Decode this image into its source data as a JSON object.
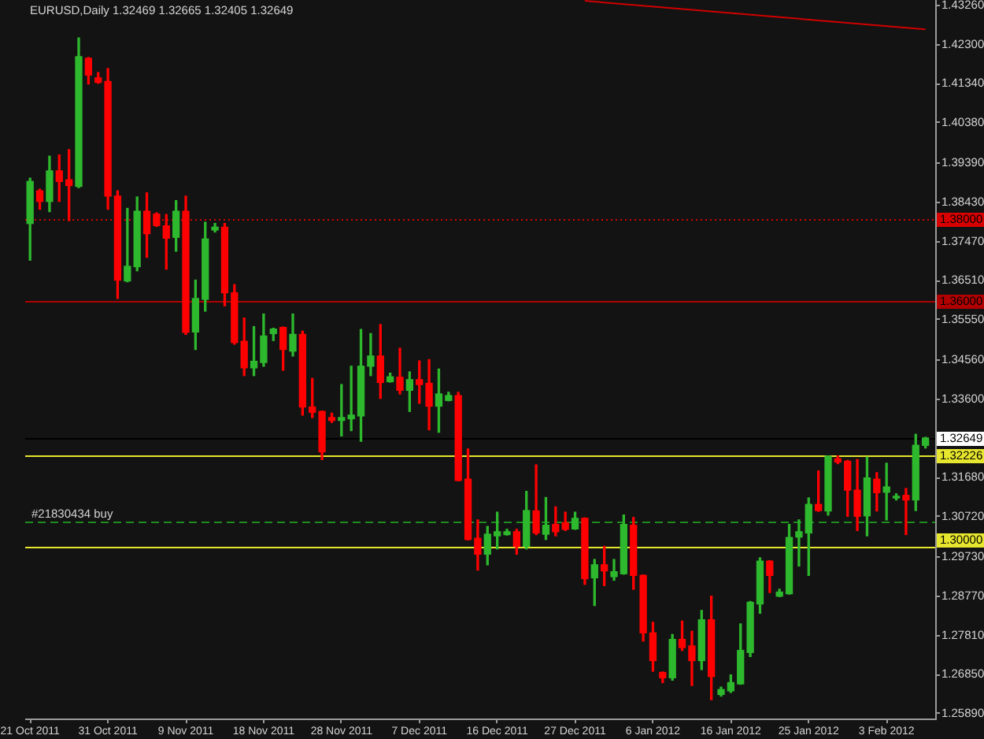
{
  "chart_data": {
    "type": "candlestick",
    "title": "EURUSD,Daily 1.32469 1.32665 1.32405 1.32649",
    "categories": [
      "21 Oct 2011",
      null,
      null,
      null,
      null,
      null,
      null,
      null,
      "31 Oct 2011",
      null,
      null,
      null,
      null,
      null,
      null,
      null,
      "9 Nov 2011",
      null,
      null,
      null,
      null,
      null,
      null,
      null,
      "18 Nov 2011",
      null,
      null,
      null,
      null,
      null,
      null,
      null,
      "28 Nov 2011",
      null,
      null,
      null,
      null,
      null,
      null,
      null,
      "7 Dec 2011",
      null,
      null,
      null,
      null,
      null,
      null,
      null,
      "16 Dec 2011",
      null,
      null,
      null,
      null,
      null,
      null,
      null,
      "27 Dec 2011",
      null,
      null,
      null,
      null,
      null,
      null,
      null,
      "6 Jan 2012",
      null,
      null,
      null,
      null,
      null,
      null,
      null,
      "16 Jan 2012",
      null,
      null,
      null,
      null,
      null,
      null,
      null,
      "25 Jan 2012",
      null,
      null,
      null,
      null,
      null,
      null,
      null,
      "3 Feb 2012",
      null,
      null,
      null,
      null
    ],
    "ohlc": [
      [
        1.3791,
        1.3902,
        1.3701,
        1.3894
      ],
      [
        1.3871,
        1.3875,
        1.3826,
        1.3845
      ],
      [
        1.3845,
        1.3956,
        1.382,
        1.392
      ],
      [
        1.392,
        1.3959,
        1.3845,
        1.3894
      ],
      [
        1.3898,
        1.3972,
        1.3798,
        1.3884
      ],
      [
        1.3882,
        1.4246,
        1.3879,
        1.42
      ],
      [
        1.4196,
        1.4198,
        1.4133,
        1.4155
      ],
      [
        1.4148,
        1.4161,
        1.4135,
        1.4137
      ],
      [
        1.4139,
        1.4171,
        1.3826,
        1.3858
      ],
      [
        1.3858,
        1.3871,
        1.3607,
        1.3652
      ],
      [
        1.365,
        1.3828,
        1.3648,
        1.3686
      ],
      [
        1.3685,
        1.3856,
        1.3675,
        1.3821
      ],
      [
        1.3821,
        1.3866,
        1.3708,
        1.3766
      ],
      [
        1.3814,
        1.3817,
        1.3784,
        1.3786
      ],
      [
        1.3785,
        1.3813,
        1.3679,
        1.3755
      ],
      [
        1.3757,
        1.3847,
        1.3723,
        1.3821
      ],
      [
        1.3821,
        1.3858,
        1.3519,
        1.3524
      ],
      [
        1.3525,
        1.3652,
        1.3482,
        1.3607
      ],
      [
        1.3605,
        1.3794,
        1.3576,
        1.3753
      ],
      [
        1.3775,
        1.3791,
        1.377,
        1.3782
      ],
      [
        1.3782,
        1.3791,
        1.3589,
        1.3621
      ],
      [
        1.3621,
        1.3641,
        1.3495,
        1.3499
      ],
      [
        1.3502,
        1.3559,
        1.3418,
        1.3437
      ],
      [
        1.3437,
        1.3538,
        1.3418,
        1.3453
      ],
      [
        1.345,
        1.3569,
        1.3441,
        1.3515
      ],
      [
        1.3521,
        1.3534,
        1.3504,
        1.3532
      ],
      [
        1.3536,
        1.3537,
        1.3431,
        1.3482
      ],
      [
        1.3478,
        1.3569,
        1.3466,
        1.3519
      ],
      [
        1.3519,
        1.3527,
        1.3321,
        1.3341
      ],
      [
        1.3341,
        1.3411,
        1.3315,
        1.3328
      ],
      [
        1.333,
        1.3331,
        1.3212,
        1.3231
      ],
      [
        1.3315,
        1.3326,
        1.3303,
        1.3308
      ],
      [
        1.3308,
        1.3396,
        1.327,
        1.3315
      ],
      [
        1.3312,
        1.3441,
        1.3283,
        1.3321
      ],
      [
        1.3319,
        1.3531,
        1.3257,
        1.3441
      ],
      [
        1.3441,
        1.3521,
        1.3418,
        1.3466
      ],
      [
        1.3466,
        1.3543,
        1.3362,
        1.3401
      ],
      [
        1.3403,
        1.3424,
        1.3402,
        1.3415
      ],
      [
        1.3414,
        1.3485,
        1.3373,
        1.3382
      ],
      [
        1.3382,
        1.3427,
        1.333,
        1.3408
      ],
      [
        1.3408,
        1.3454,
        1.335,
        1.3396
      ],
      [
        1.3399,
        1.3457,
        1.3285,
        1.3343
      ],
      [
        1.3343,
        1.3434,
        1.3279,
        1.3373
      ],
      [
        1.3357,
        1.3377,
        1.3356,
        1.3369
      ],
      [
        1.3369,
        1.3377,
        1.316,
        1.3161
      ],
      [
        1.3164,
        1.3238,
        1.3015,
        1.3016
      ],
      [
        1.3019,
        1.3064,
        1.2941,
        1.298
      ],
      [
        1.298,
        1.3048,
        1.2954,
        1.3029
      ],
      [
        1.3025,
        1.3083,
        1.2993,
        1.3035
      ],
      [
        1.3028,
        1.3041,
        1.3027,
        1.3035
      ],
      [
        1.3035,
        1.3041,
        1.298,
        1.2999
      ],
      [
        1.2999,
        1.3134,
        1.2993,
        1.3087
      ],
      [
        1.3086,
        1.3199,
        1.3028,
        1.3032
      ],
      [
        1.3029,
        1.3119,
        1.3016,
        1.3051
      ],
      [
        1.3053,
        1.3096,
        1.3025,
        1.3035
      ],
      [
        1.3057,
        1.3083,
        1.3038,
        1.3041
      ],
      [
        1.3042,
        1.3083,
        1.3041,
        1.3068
      ],
      [
        1.3068,
        1.3069,
        1.2906,
        1.292
      ],
      [
        1.2922,
        1.2967,
        1.2854,
        1.2954
      ],
      [
        1.2954,
        1.2999,
        1.2903,
        1.2939
      ],
      [
        1.2925,
        1.2967,
        1.2916,
        1.2937
      ],
      [
        1.2932,
        1.3076,
        1.2931,
        1.3053
      ],
      [
        1.3051,
        1.307,
        1.2894,
        1.2928
      ],
      [
        1.2928,
        1.2929,
        1.2767,
        1.2787
      ],
      [
        1.2787,
        1.2813,
        1.2693,
        1.2719
      ],
      [
        1.269,
        1.2691,
        1.2665,
        1.2677
      ],
      [
        1.2677,
        1.2783,
        1.2671,
        1.2771
      ],
      [
        1.2771,
        1.2816,
        1.2744,
        1.2751
      ],
      [
        1.2755,
        1.2791,
        1.2658,
        1.2719
      ],
      [
        1.2719,
        1.2842,
        1.2697,
        1.2819
      ],
      [
        1.2819,
        1.2877,
        1.2623,
        1.268
      ],
      [
        1.2636,
        1.2654,
        1.2632,
        1.2648
      ],
      [
        1.2645,
        1.2684,
        1.2641,
        1.2665
      ],
      [
        1.2662,
        1.2809,
        1.2661,
        1.2744
      ],
      [
        1.2739,
        1.2864,
        1.2729,
        1.2862
      ],
      [
        1.2858,
        1.2971,
        1.2835,
        1.2963
      ],
      [
        1.2963,
        1.2964,
        1.2886,
        1.2928
      ],
      [
        1.2877,
        1.2894,
        1.2876,
        1.2887
      ],
      [
        1.2883,
        1.3053,
        1.2882,
        1.3021
      ],
      [
        1.3022,
        1.3064,
        1.2951,
        1.3035
      ],
      [
        1.3032,
        1.3118,
        1.2928,
        1.3102
      ],
      [
        1.3102,
        1.3184,
        1.3085,
        1.3087
      ],
      [
        1.3086,
        1.3221,
        1.3076,
        1.322
      ],
      [
        1.3214,
        1.3221,
        1.3202,
        1.3206
      ],
      [
        1.3208,
        1.321,
        1.3073,
        1.3137
      ],
      [
        1.3137,
        1.3212,
        1.3038,
        1.3073
      ],
      [
        1.3074,
        1.3218,
        1.3025,
        1.3167
      ],
      [
        1.3164,
        1.318,
        1.3086,
        1.3131
      ],
      [
        1.3132,
        1.3203,
        1.3064,
        1.3145
      ],
      [
        1.3118,
        1.3128,
        1.3113,
        1.3122
      ],
      [
        1.3124,
        1.3141,
        1.3028,
        1.3113
      ],
      [
        1.3113,
        1.3274,
        1.3087,
        1.3247
      ],
      [
        1.32469,
        1.32665,
        1.32405,
        1.32649
      ]
    ],
    "colors": [
      "#2eb82e",
      "#ff0000",
      "#2eb82e",
      "#ff0000",
      "#ff0000",
      "#2eb82e",
      "#ff0000",
      "#ff0000",
      "#ff0000",
      "#ff0000",
      "#2eb82e",
      "#2eb82e",
      "#ff0000",
      "#ff0000",
      "#ff0000",
      "#2eb82e",
      "#ff0000",
      "#2eb82e",
      "#2eb82e",
      "#2eb82e",
      "#ff0000",
      "#ff0000",
      "#ff0000",
      "#2eb82e",
      "#2eb82e",
      "#2eb82e",
      "#ff0000",
      "#2eb82e",
      "#ff0000",
      "#ff0000",
      "#ff0000",
      "#ff0000",
      "#2eb82e",
      "#2eb82e",
      "#2eb82e",
      "#2eb82e",
      "#ff0000",
      "#2eb82e",
      "#ff0000",
      "#2eb82e",
      "#ff0000",
      "#ff0000",
      "#2eb82e",
      "#2eb82e",
      "#ff0000",
      "#ff0000",
      "#ff0000",
      "#2eb82e",
      "#2eb82e",
      "#2eb82e",
      "#ff0000",
      "#2eb82e",
      "#ff0000",
      "#2eb82e",
      "#ff0000",
      "#ff0000",
      "#2eb82e",
      "#ff0000",
      "#2eb82e",
      "#ff0000",
      "#2eb82e",
      "#2eb82e",
      "#ff0000",
      "#ff0000",
      "#ff0000",
      "#ff0000",
      "#2eb82e",
      "#ff0000",
      "#ff0000",
      "#2eb82e",
      "#ff0000",
      "#2eb82e",
      "#2eb82e",
      "#2eb82e",
      "#2eb82e",
      "#2eb82e",
      "#ff0000",
      "#2eb82e",
      "#2eb82e",
      "#2eb82e",
      "#2eb82e",
      "#ff0000",
      "#2eb82e",
      "#ff0000",
      "#ff0000",
      "#ff0000",
      "#2eb82e",
      "#ff0000",
      "#2eb82e",
      "#2eb82e",
      "#ff0000",
      "#2eb82e",
      "#2eb82e"
    ],
    "ylim": [
      1.2577,
      1.4339
    ],
    "yticks": [
      {
        "value": 1.4326,
        "label": "1.43260"
      },
      {
        "value": 1.423,
        "label": "1.42300"
      },
      {
        "value": 1.4134,
        "label": "1.41340"
      },
      {
        "value": 1.4038,
        "label": "1.40380"
      },
      {
        "value": 1.3939,
        "label": "1.39390"
      },
      {
        "value": 1.3843,
        "label": "1.38430"
      },
      {
        "value": 1.3747,
        "label": "1.37470"
      },
      {
        "value": 1.3651,
        "label": "1.36510"
      },
      {
        "value": 1.3555,
        "label": "1.35550"
      },
      {
        "value": 1.3456,
        "label": "1.34560"
      },
      {
        "value": 1.336,
        "label": "1.33600"
      },
      {
        "value": 1.3168,
        "label": "1.31680"
      },
      {
        "value": 1.3072,
        "label": "1.30720"
      },
      {
        "value": 1.2973,
        "label": "1.29730"
      },
      {
        "value": 1.2877,
        "label": "1.28770"
      },
      {
        "value": 1.2781,
        "label": "1.27810"
      },
      {
        "value": 1.2685,
        "label": "1.26850"
      },
      {
        "value": 1.2589,
        "label": "1.25890"
      }
    ],
    "ref_lines": [
      {
        "axis": "y",
        "value": 1.38,
        "label": "1.38000",
        "color": "#d80000",
        "line_style": "dotted"
      },
      {
        "axis": "y",
        "value": 1.36,
        "label": "1.36000",
        "color": "#b00000",
        "line_style": "solid"
      },
      {
        "axis": "y",
        "value": 1.32649,
        "label": "1.32649",
        "color": "#000000",
        "line_style": "solid"
      },
      {
        "axis": "y",
        "value": 1.32226,
        "label": "1.32226",
        "color": "#e6e62e",
        "line_style": "solid"
      },
      {
        "axis": "y",
        "value": 1.3,
        "label": "1.30000",
        "color": "#e6e62e",
        "line_style": "solid"
      },
      {
        "axis": "y",
        "value": 1.3059,
        "label": "#21830434 buy",
        "color": "#1e8c1e",
        "line_style": "dashed"
      }
    ],
    "series": [
      {
        "type": "line",
        "color": "#d00000",
        "values": [
          null,
          null,
          null,
          null,
          null,
          null,
          null,
          null,
          null,
          null,
          null,
          null,
          null,
          null,
          null,
          null,
          null,
          null,
          null,
          null,
          null,
          null,
          null,
          null,
          null,
          null,
          null,
          null,
          null,
          null,
          null,
          null,
          null,
          null,
          null,
          null,
          null,
          null,
          null,
          null,
          null,
          null,
          null,
          null,
          null,
          null,
          null,
          null,
          null,
          null,
          null,
          null,
          null,
          null,
          null,
          null,
          null,
          1.4337,
          null,
          null,
          null,
          null,
          null,
          null,
          null,
          null,
          null,
          null,
          null,
          null,
          null,
          null,
          null,
          null,
          null,
          null,
          null,
          null,
          null,
          null,
          null,
          null,
          null,
          null,
          null,
          null,
          null,
          null,
          null,
          null,
          null,
          null,
          1.4267
        ]
      }
    ]
  }
}
